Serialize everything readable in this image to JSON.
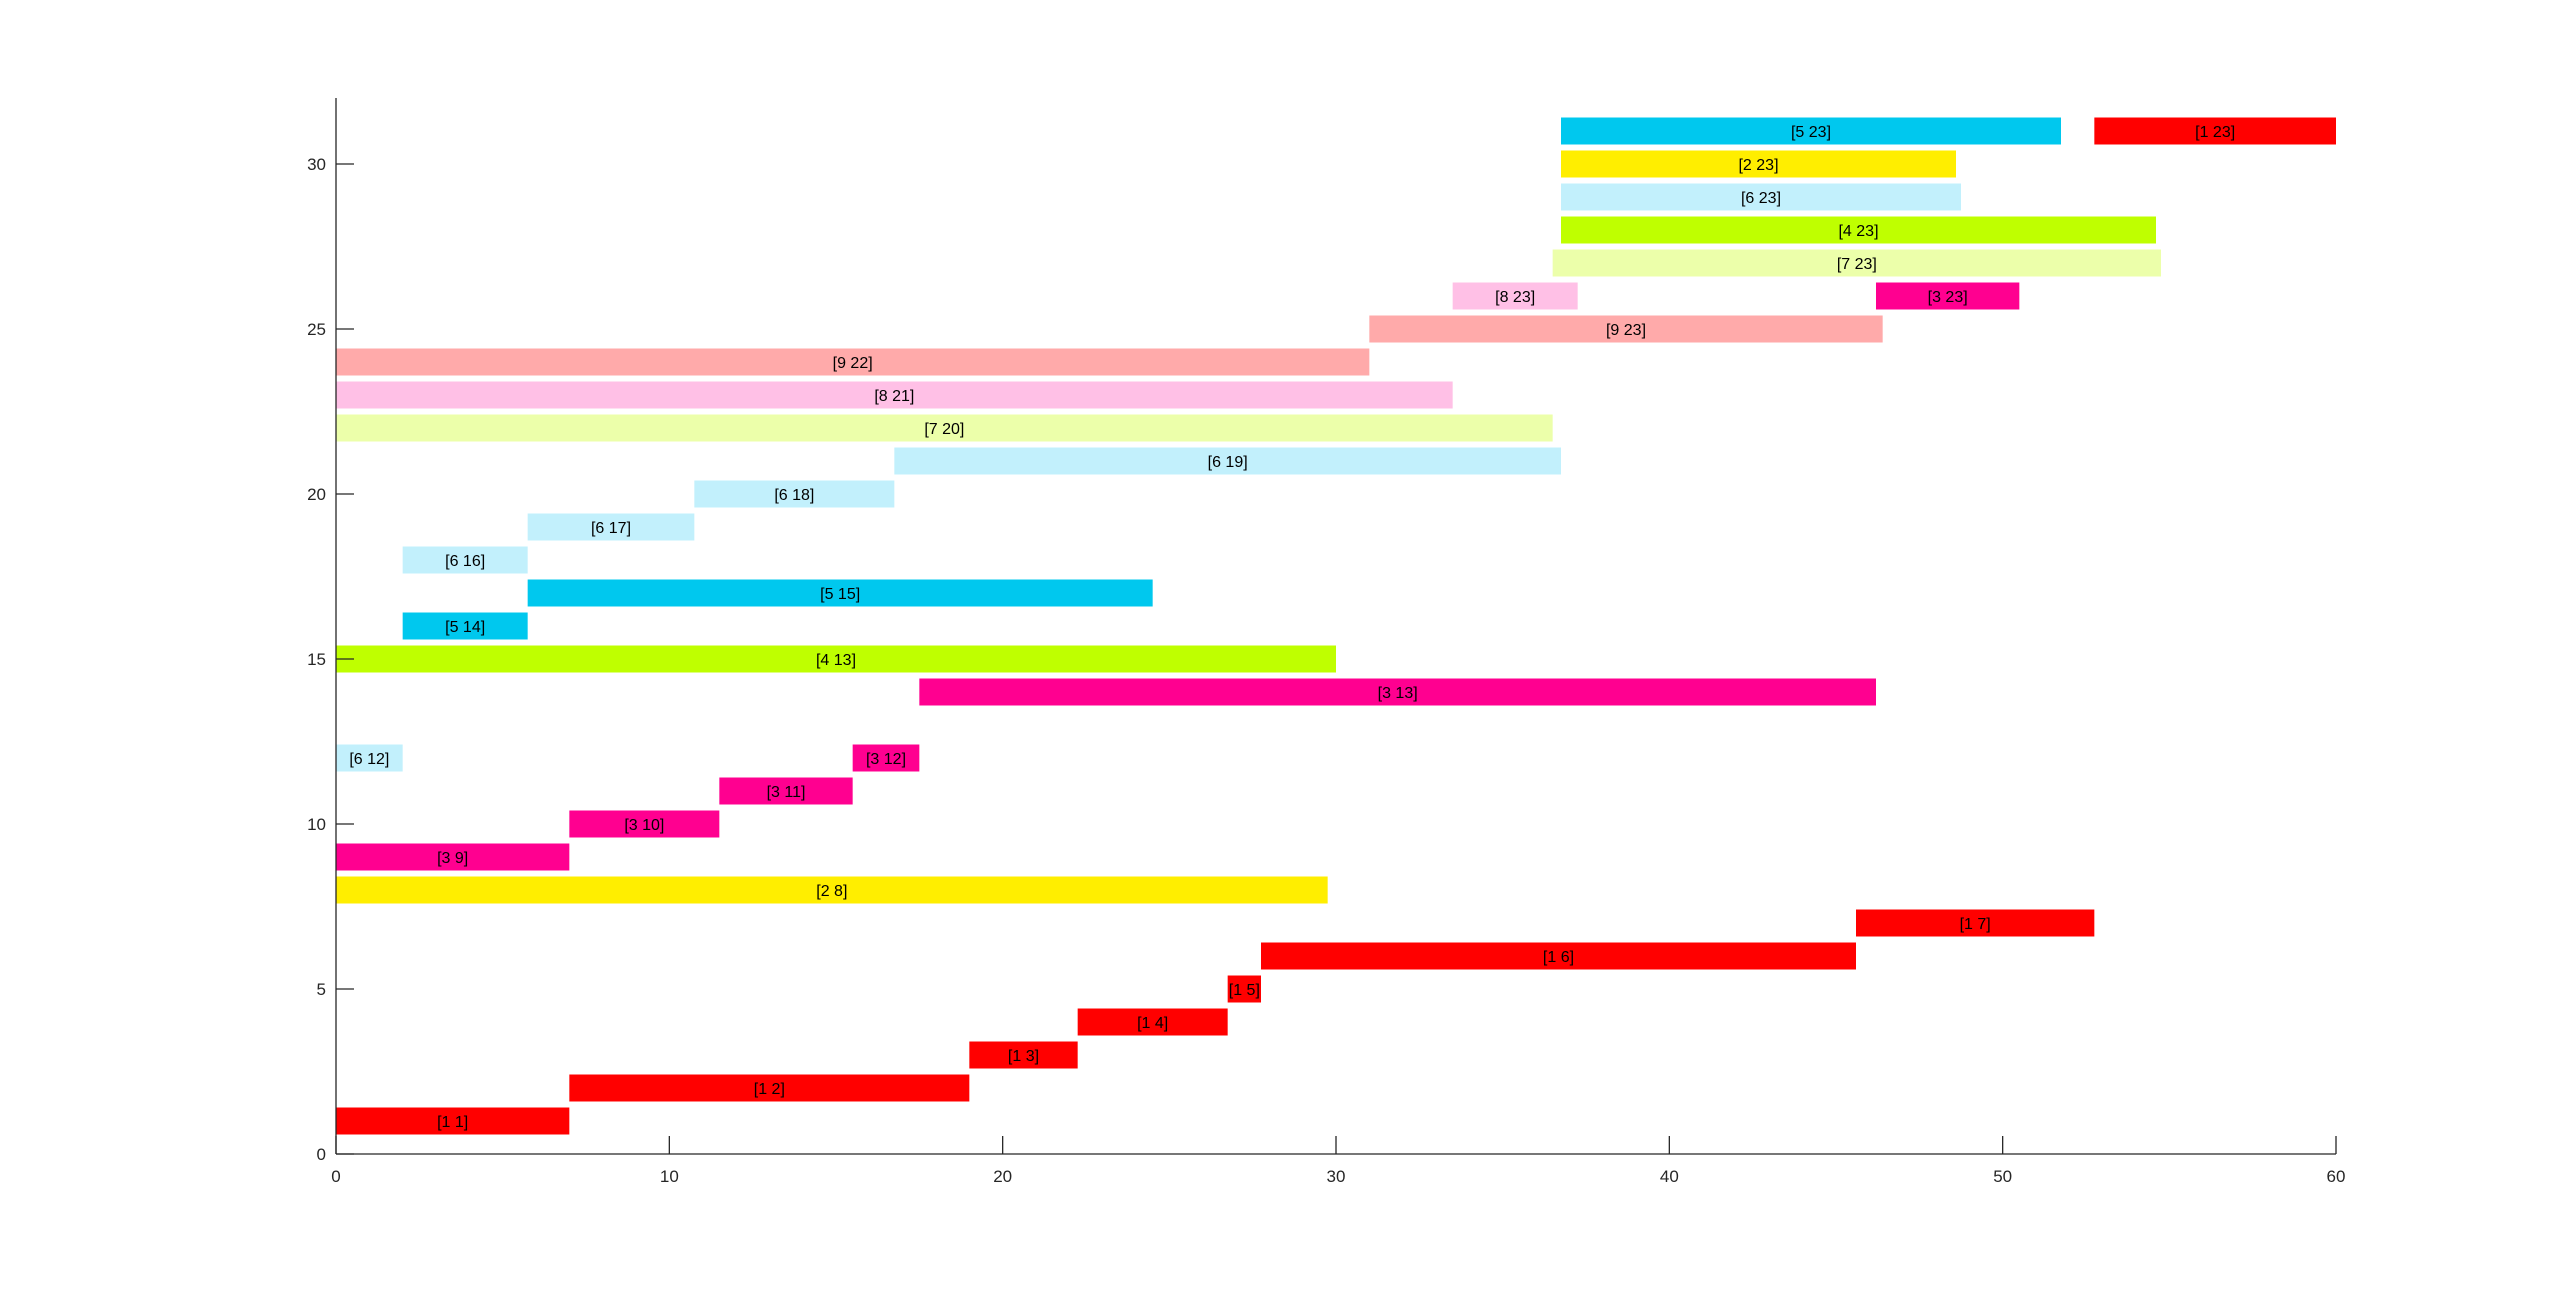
{
  "chart_data": {
    "type": "bar",
    "orientation": "horizontal-floating",
    "title": "",
    "xlabel": "",
    "ylabel": "",
    "xlim": [
      0,
      60
    ],
    "ylim": [
      0,
      32
    ],
    "xticks": [
      0,
      10,
      20,
      30,
      40,
      50,
      60
    ],
    "yticks": [
      0,
      5,
      10,
      15,
      20,
      25,
      30
    ],
    "grid": false,
    "legend": "none",
    "colors": {
      "1": "#ff0000",
      "2": "#ffee00",
      "3": "#ff0090",
      "4": "#bfff00",
      "5": "#00c8ee",
      "6": "#c2f0fc",
      "7": "#ecffaa",
      "8": "#ffc0e6",
      "9": "#ffaaaa"
    },
    "bars": [
      {
        "label": "[1 1]",
        "group": 1,
        "y": 1,
        "start": 0,
        "end": 7.0
      },
      {
        "label": "[1 2]",
        "group": 1,
        "y": 2,
        "start": 7.0,
        "end": 19.0
      },
      {
        "label": "[1 3]",
        "group": 1,
        "y": 3,
        "start": 19.0,
        "end": 22.25
      },
      {
        "label": "[1 4]",
        "group": 1,
        "y": 4,
        "start": 22.25,
        "end": 26.75
      },
      {
        "label": "[1 5]",
        "group": 1,
        "y": 5,
        "start": 26.75,
        "end": 27.75
      },
      {
        "label": "[1 6]",
        "group": 1,
        "y": 6,
        "start": 27.75,
        "end": 45.6
      },
      {
        "label": "[1 7]",
        "group": 1,
        "y": 7,
        "start": 45.6,
        "end": 52.75
      },
      {
        "label": "[2 8]",
        "group": 2,
        "y": 8,
        "start": 0,
        "end": 29.75
      },
      {
        "label": "[3 9]",
        "group": 3,
        "y": 9,
        "start": 0,
        "end": 7.0
      },
      {
        "label": "[3 10]",
        "group": 3,
        "y": 10,
        "start": 7.0,
        "end": 11.5
      },
      {
        "label": "[3 11]",
        "group": 3,
        "y": 11,
        "start": 11.5,
        "end": 15.5
      },
      {
        "label": "[3 12]",
        "group": 3,
        "y": 12,
        "start": 15.5,
        "end": 17.5
      },
      {
        "label": "[6 12]",
        "group": 6,
        "y": 12,
        "start": 0,
        "end": 2.0
      },
      {
        "label": "[3 13]",
        "group": 3,
        "y": 14,
        "start": 17.5,
        "end": 46.2
      },
      {
        "label": "[4 13]",
        "group": 4,
        "y": 15,
        "start": 0,
        "end": 30.0
      },
      {
        "label": "[5 14]",
        "group": 5,
        "y": 16,
        "start": 2.0,
        "end": 5.75
      },
      {
        "label": "[5 15]",
        "group": 5,
        "y": 17,
        "start": 5.75,
        "end": 24.5
      },
      {
        "label": "[6 16]",
        "group": 6,
        "y": 18,
        "start": 2.0,
        "end": 5.75
      },
      {
        "label": "[6 17]",
        "group": 6,
        "y": 19,
        "start": 5.75,
        "end": 10.75
      },
      {
        "label": "[6 18]",
        "group": 6,
        "y": 20,
        "start": 10.75,
        "end": 16.75
      },
      {
        "label": "[6 19]",
        "group": 6,
        "y": 21,
        "start": 16.75,
        "end": 36.75
      },
      {
        "label": "[7 20]",
        "group": 7,
        "y": 22,
        "start": 0,
        "end": 36.5
      },
      {
        "label": "[8 21]",
        "group": 8,
        "y": 23,
        "start": 0,
        "end": 33.5
      },
      {
        "label": "[9 22]",
        "group": 9,
        "y": 24,
        "start": 0,
        "end": 31.0
      },
      {
        "label": "[9 23]",
        "group": 9,
        "y": 25,
        "start": 31.0,
        "end": 46.4
      },
      {
        "label": "[8 23]",
        "group": 8,
        "y": 26,
        "start": 33.5,
        "end": 37.25
      },
      {
        "label": "[3 23]",
        "group": 3,
        "y": 26,
        "start": 46.2,
        "end": 50.5
      },
      {
        "label": "[7 23]",
        "group": 7,
        "y": 27,
        "start": 36.5,
        "end": 54.75
      },
      {
        "label": "[4 23]",
        "group": 4,
        "y": 28,
        "start": 36.75,
        "end": 54.6
      },
      {
        "label": "[6 23]",
        "group": 6,
        "y": 29,
        "start": 36.75,
        "end": 48.75
      },
      {
        "label": "[2 23]",
        "group": 2,
        "y": 30,
        "start": 36.75,
        "end": 48.6
      },
      {
        "label": "[5 23]",
        "group": 5,
        "y": 31,
        "start": 36.75,
        "end": 51.75
      },
      {
        "label": "[1 23]",
        "group": 1,
        "y": 31,
        "start": 52.75,
        "end": 60.0
      }
    ]
  }
}
